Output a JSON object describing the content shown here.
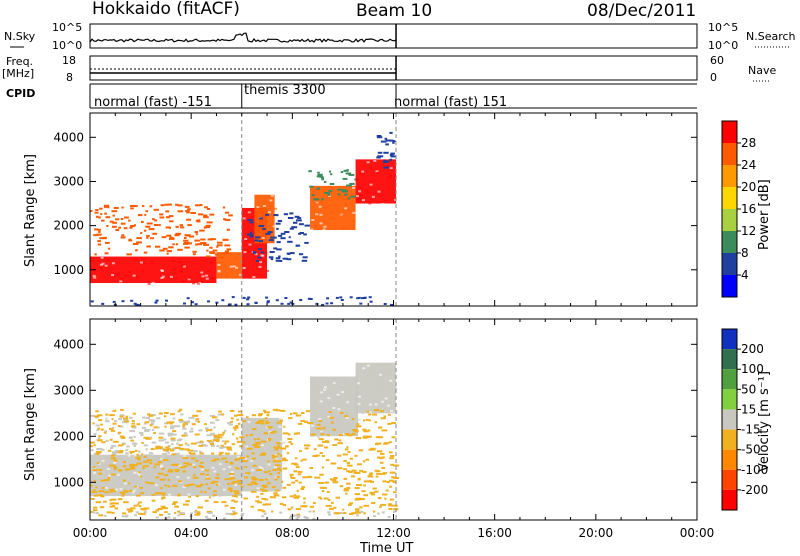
{
  "header": {
    "title": "Hokkaido (fitACF)",
    "beam": "Beam 10",
    "date": "08/Dec/2011"
  },
  "top_panels": {
    "nsky": {
      "label": "N.Sky",
      "ticks": [
        "10^5",
        "10^0"
      ]
    },
    "nsearch": {
      "label": "N.Search",
      "ticks": [
        "10^5",
        "10^0"
      ]
    },
    "freq": {
      "label": "Freq.",
      "unit": "[MHz]",
      "ticks": [
        "18",
        "8"
      ]
    },
    "nave": {
      "label": "Nave",
      "ticks": [
        "60",
        "0"
      ]
    }
  },
  "cpid": {
    "label": "CPID",
    "segments": [
      {
        "label": "normal (fast) -151",
        "start": 0,
        "end": 6.0
      },
      {
        "label": "themis 3300",
        "start": 6.0,
        "end": 12.1
      },
      {
        "label": "normal (fast) 151",
        "start": 12.1,
        "end": 24
      }
    ]
  },
  "power_colorbar": {
    "label": "Power [dB]",
    "ticks": [
      "28",
      "24",
      "20",
      "16",
      "12",
      "8",
      "4"
    ],
    "colors": [
      "#ff0000",
      "#ff5a00",
      "#ff9900",
      "#ffd700",
      "#a8d040",
      "#3c8c5a",
      "#2040a0",
      "#0000ff"
    ]
  },
  "velocity_colorbar": {
    "label": "Velocity [m s⁻¹]",
    "ticks": [
      "200",
      "100",
      "50",
      "15",
      "-15",
      "-50",
      "-100",
      "-200"
    ],
    "colors": [
      "#1030c0",
      "#307050",
      "#50a040",
      "#80d040",
      "#c8c8c0",
      "#f0b020",
      "#ff8800",
      "#ff4400",
      "#ff0000"
    ]
  },
  "chart_data": {
    "type": "heatmap",
    "xlabel": "Time UT",
    "ylabel": "Slant Range [km]",
    "x_ticks": [
      "00:00",
      "04:00",
      "08:00",
      "12:00",
      "16:00",
      "20:00",
      "00:00"
    ],
    "xlim_hours": [
      0,
      24
    ],
    "ylim_km": [
      180,
      4550
    ],
    "y_ticks": [
      1000,
      2000,
      3000,
      4000
    ],
    "data_end_hour": 12.1,
    "power_regions": [
      {
        "t0": 0.0,
        "t1": 5.0,
        "r0": 700,
        "r1": 1300,
        "color": "#ff0000"
      },
      {
        "t0": 0.0,
        "t1": 5.5,
        "r0": 1300,
        "r1": 2500,
        "color": "#ff5a00",
        "sparse": true
      },
      {
        "t0": 5.0,
        "t1": 6.0,
        "r0": 800,
        "r1": 1400,
        "color": "#ff5a00"
      },
      {
        "t0": 6.0,
        "t1": 7.0,
        "r0": 800,
        "r1": 2400,
        "color": "#ff0000"
      },
      {
        "t0": 6.5,
        "t1": 7.3,
        "r0": 1600,
        "r1": 2700,
        "color": "#ff5a00"
      },
      {
        "t0": 6.2,
        "t1": 8.5,
        "r0": 1200,
        "r1": 2300,
        "color": "#2040a0",
        "sparse": true
      },
      {
        "t0": 8.7,
        "t1": 10.5,
        "r0": 1900,
        "r1": 2900,
        "color": "#ff5a00"
      },
      {
        "t0": 8.6,
        "t1": 10.6,
        "r0": 2600,
        "r1": 3300,
        "color": "#3c8c5a",
        "sparse": true
      },
      {
        "t0": 10.5,
        "t1": 12.1,
        "r0": 2500,
        "r1": 3500,
        "color": "#ff0000"
      },
      {
        "t0": 11.2,
        "t1": 12.0,
        "r0": 3300,
        "r1": 4300,
        "color": "#2040a0",
        "sparse": true
      }
    ],
    "velocity_regions": [
      {
        "t0": 0.0,
        "t1": 6.0,
        "r0": 700,
        "r1": 1600,
        "color": "#c8c8c0"
      },
      {
        "t0": 0.0,
        "t1": 5.5,
        "r0": 1500,
        "r1": 2500,
        "color": "#c8c8c0",
        "sparse": true
      },
      {
        "t0": 6.0,
        "t1": 7.6,
        "r0": 800,
        "r1": 2400,
        "color": "#c8c8c0"
      },
      {
        "t0": 8.7,
        "t1": 10.6,
        "r0": 2000,
        "r1": 3300,
        "color": "#c8c8c0"
      },
      {
        "t0": 10.5,
        "t1": 12.1,
        "r0": 2500,
        "r1": 3600,
        "color": "#c8c8c0"
      },
      {
        "t0": 0.0,
        "t1": 12.0,
        "r0": 300,
        "r1": 2600,
        "color": "#f0b020",
        "sparse": true
      }
    ]
  }
}
